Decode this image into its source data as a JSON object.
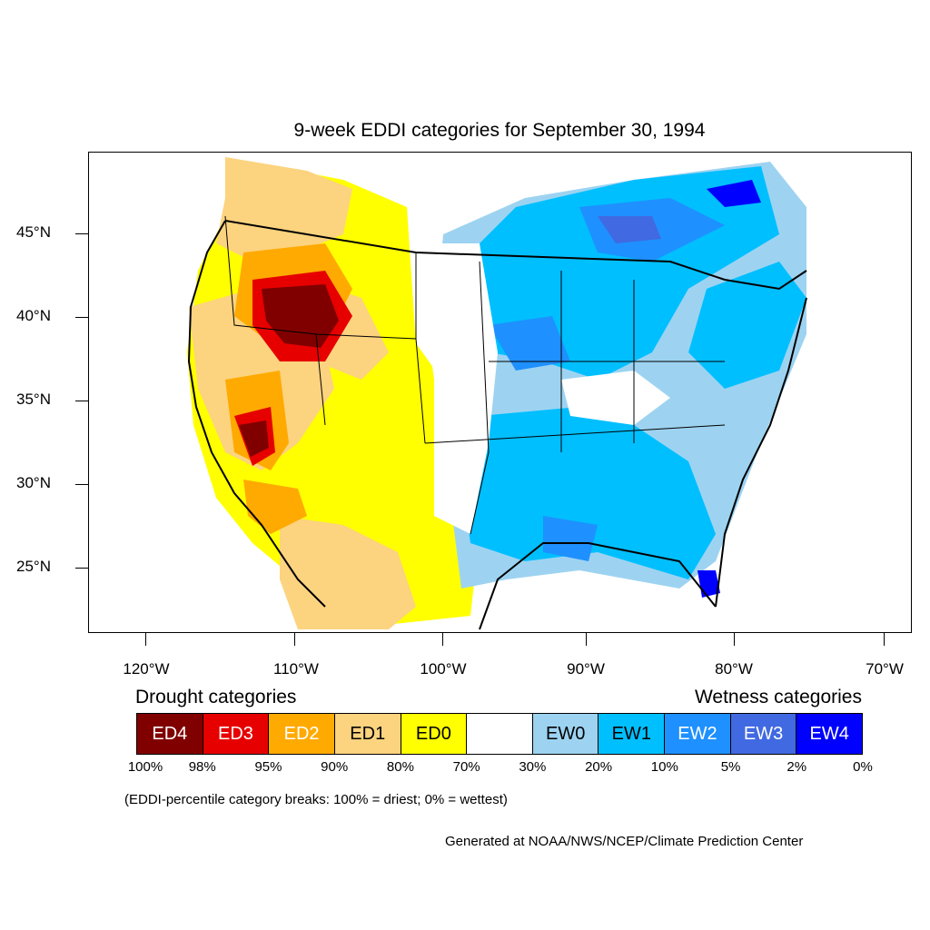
{
  "title": "9-week EDDI categories for September 30, 1994",
  "axes": {
    "lat_labels": [
      "45°N",
      "40°N",
      "35°N",
      "30°N",
      "25°N"
    ],
    "lon_labels": [
      "120°W",
      "110°W",
      "100°W",
      "90°W",
      "80°W",
      "70°W"
    ]
  },
  "legend": {
    "drought_title": "Drought categories",
    "wetness_title": "Wetness categories",
    "categories": [
      {
        "label": "ED4",
        "color": "#800000",
        "text_color": "#ffffff"
      },
      {
        "label": "ED3",
        "color": "#e60000",
        "text_color": "#ffffff"
      },
      {
        "label": "ED2",
        "color": "#ffaa00",
        "text_color": "#ffffff"
      },
      {
        "label": "ED1",
        "color": "#fcd37f",
        "text_color": "#000000"
      },
      {
        "label": "ED0",
        "color": "#ffff00",
        "text_color": "#000000"
      },
      {
        "label": "",
        "color": "#ffffff",
        "text_color": "#000000"
      },
      {
        "label": "EW0",
        "color": "#9dd3f1",
        "text_color": "#000000"
      },
      {
        "label": "EW1",
        "color": "#00bfff",
        "text_color": "#000000"
      },
      {
        "label": "EW2",
        "color": "#1e90ff",
        "text_color": "#ffffff"
      },
      {
        "label": "EW3",
        "color": "#4169e1",
        "text_color": "#ffffff"
      },
      {
        "label": "EW4",
        "color": "#0000ff",
        "text_color": "#ffffff"
      }
    ],
    "breaks": [
      "100%",
      "98%",
      "95%",
      "90%",
      "80%",
      "70%",
      "30%",
      "20%",
      "10%",
      "5%",
      "2%",
      "0%"
    ]
  },
  "note": "(EDDI-percentile category breaks: 100% = driest; 0% = wettest)",
  "credit": "Generated at NOAA/NWS/NCEP/Climate Prediction Center"
}
